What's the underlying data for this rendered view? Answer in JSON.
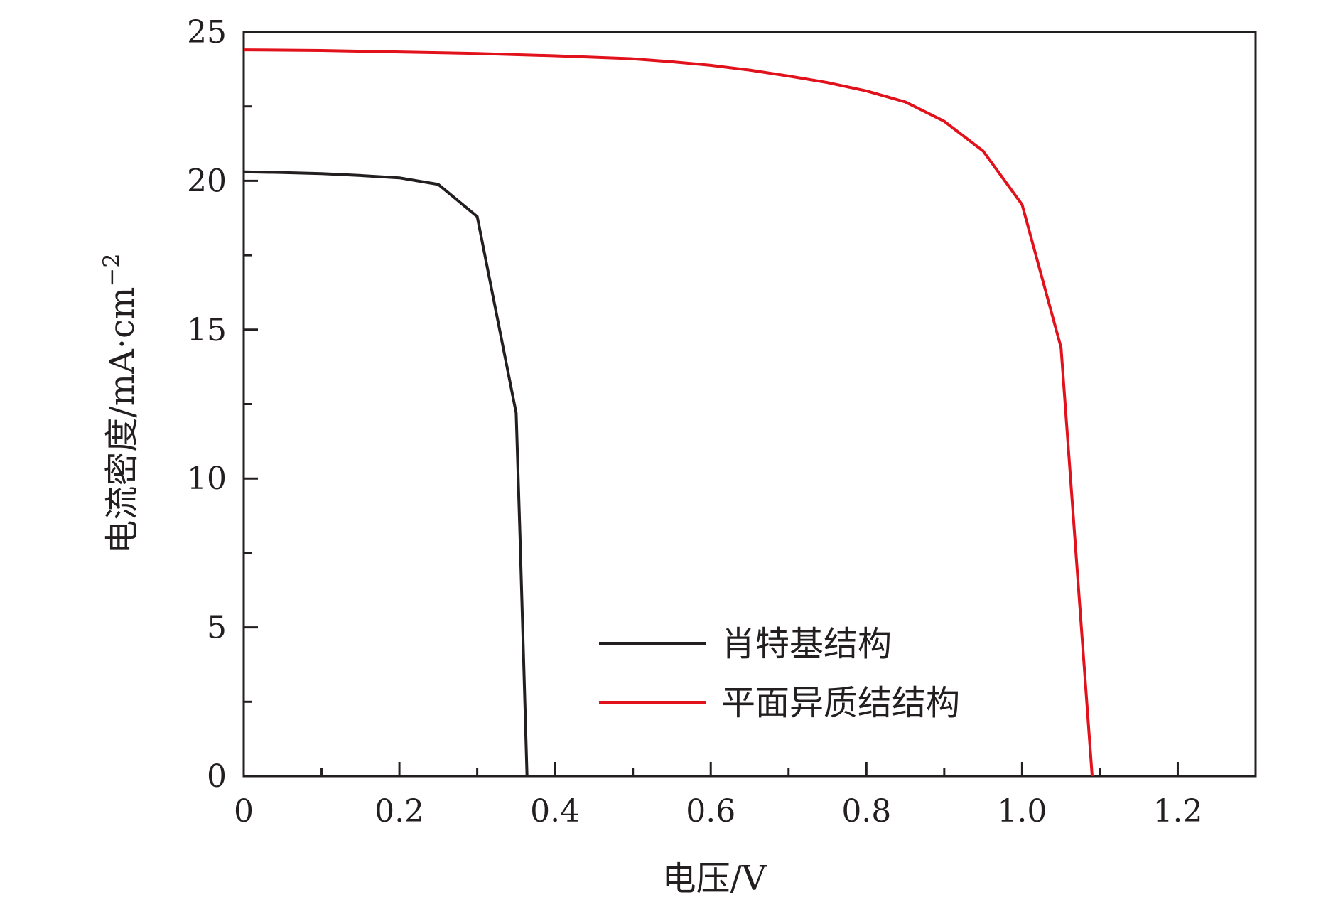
{
  "chart_data": {
    "type": "line",
    "title": "",
    "xlabel": "电压/V",
    "ylabel": "电流密度/mA·cm",
    "ylabel_sup": "−2",
    "xlim": [
      0,
      1.3
    ],
    "ylim": [
      0,
      25
    ],
    "x_ticks": [
      0,
      0.2,
      0.4,
      0.6,
      0.8,
      1.0,
      1.2
    ],
    "x_tick_labels": [
      "0",
      "0.2",
      "0.4",
      "0.6",
      "0.8",
      "1.0",
      "1.2"
    ],
    "y_ticks": [
      0,
      5,
      10,
      15,
      20,
      25
    ],
    "y_tick_labels": [
      "0",
      "5",
      "10",
      "15",
      "20",
      "25"
    ],
    "x_minor_ticks": [
      0.1,
      0.3,
      0.5,
      0.7,
      0.9,
      1.1
    ],
    "y_minor_ticks": [
      2.5,
      7.5,
      12.5,
      17.5,
      22.5
    ],
    "grid": false,
    "legend_position": "lower-center",
    "series": [
      {
        "name": "肖特基结构",
        "color": "#231f20",
        "x": [
          0,
          0.05,
          0.1,
          0.15,
          0.2,
          0.25,
          0.3,
          0.35,
          0.355,
          0.364
        ],
        "y": [
          20.3,
          20.28,
          20.24,
          20.18,
          20.1,
          19.88,
          18.8,
          12.2,
          8.0,
          0
        ]
      },
      {
        "name": "平面异质结结构",
        "color": "#e1121c",
        "x": [
          0,
          0.1,
          0.2,
          0.3,
          0.4,
          0.5,
          0.55,
          0.6,
          0.65,
          0.7,
          0.75,
          0.8,
          0.85,
          0.9,
          0.95,
          1.0,
          1.05,
          1.09
        ],
        "y": [
          24.4,
          24.38,
          24.33,
          24.28,
          24.2,
          24.1,
          24.0,
          23.88,
          23.72,
          23.52,
          23.3,
          23.02,
          22.65,
          22.0,
          21.0,
          19.2,
          14.4,
          0
        ]
      }
    ]
  }
}
